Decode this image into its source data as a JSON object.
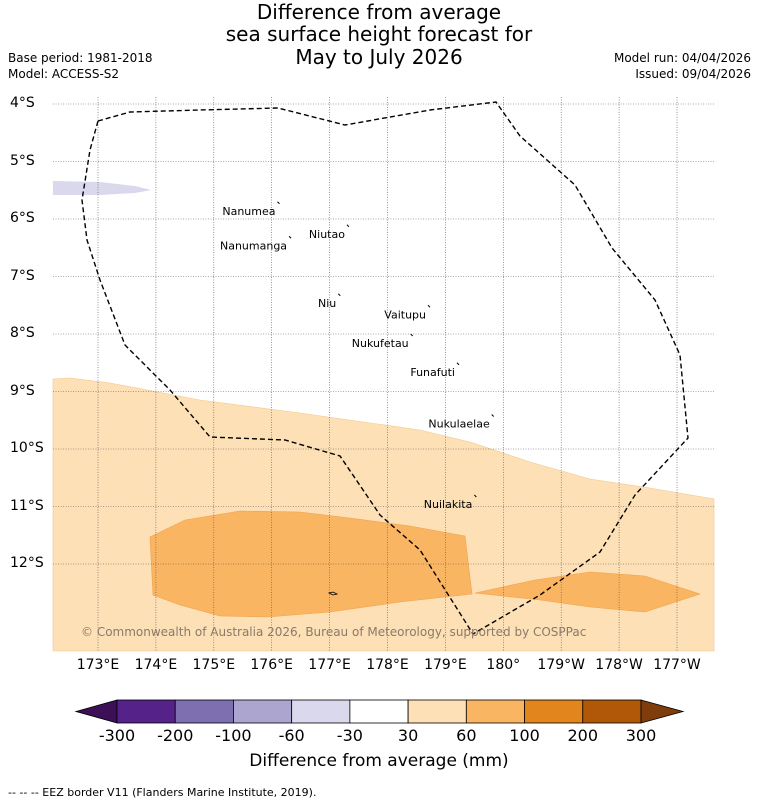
{
  "title": {
    "line1": "Difference from average",
    "line2": "sea surface height forecast for",
    "line3": "May to July 2026"
  },
  "meta": {
    "base_period": "Base period: 1981-2018",
    "model": "Model: ACCESS-S2",
    "model_run": "Model run: 04/04/2026",
    "issued": "Issued: 09/04/2026"
  },
  "axes": {
    "lat_labels": [
      "4°S",
      "5°S",
      "6°S",
      "7°S",
      "8°S",
      "9°S",
      "10°S",
      "11°S",
      "12°S"
    ],
    "lon_labels": [
      "173°E",
      "174°E",
      "175°E",
      "176°E",
      "177°E",
      "178°E",
      "179°E",
      "180°",
      "179°W",
      "178°W",
      "177°W"
    ]
  },
  "islands": [
    {
      "name": "Nanumea",
      "lon": 176.1,
      "lat": -5.7
    },
    {
      "name": "Nanumanga",
      "lon": 176.3,
      "lat": -6.3
    },
    {
      "name": "Niutao",
      "lon": 177.3,
      "lat": -6.1
    },
    {
      "name": "Niu",
      "lon": 177.15,
      "lat": -7.3
    },
    {
      "name": "Vaitupu",
      "lon": 178.7,
      "lat": -7.5
    },
    {
      "name": "Nukufetau",
      "lon": 178.4,
      "lat": -8.0
    },
    {
      "name": "Funafuti",
      "lon": 179.2,
      "lat": -8.5
    },
    {
      "name": "Nukulaelae",
      "lon": 179.8,
      "lat": -9.4
    },
    {
      "name": "Nuilakita",
      "lon": 179.5,
      "lat": -10.8
    }
  ],
  "copyright": "© Commonwealth of Australia 2026, Bureau of Meteorology, supported by COSPPac",
  "colorbar": {
    "title": "Difference from average (mm)",
    "ticks": [
      "-300",
      "-200",
      "-100",
      "-60",
      "-30",
      "30",
      "60",
      "100",
      "200",
      "300"
    ],
    "colors": [
      "#3c0f57",
      "#55228a",
      "#7d6fb0",
      "#aba5d0",
      "#d9d8ec",
      "#ffffff",
      "#fde0b6",
      "#f9b562",
      "#e1851c",
      "#b05808",
      "#7e3d0a"
    ]
  },
  "footer": "--  --  -- EEZ border V11 (Flanders Marine Institute, 2019)."
}
